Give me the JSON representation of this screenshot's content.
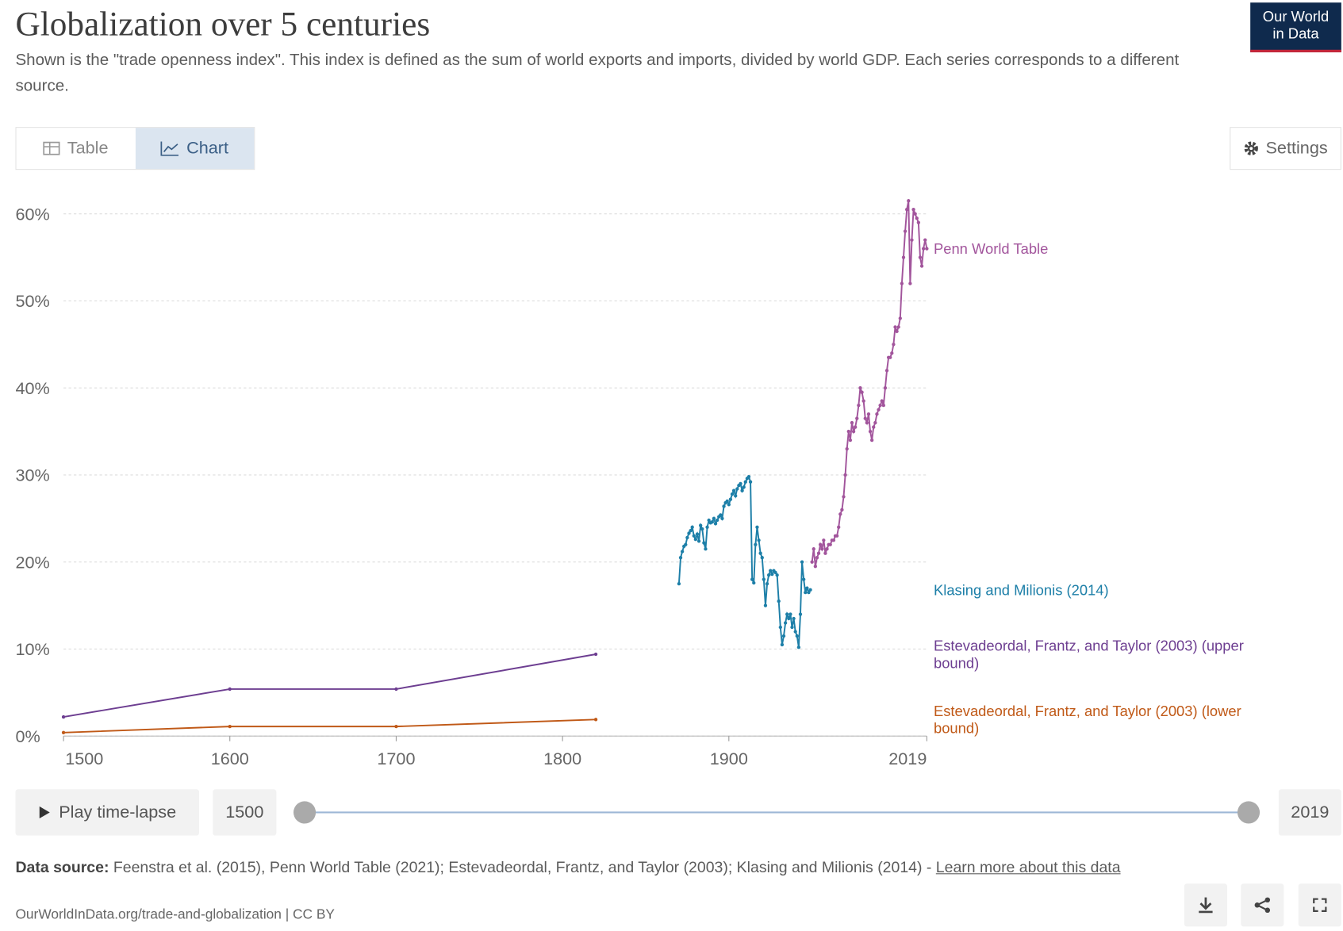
{
  "header": {
    "title": "Globalization over 5 centuries",
    "subtitle": "Shown is the \"trade openness index\". This index is defined as the sum of world exports and imports, divided by world GDP. Each series corresponds to a different source.",
    "logo": [
      "Our World",
      "in Data"
    ]
  },
  "tabs": [
    "Table",
    "Chart"
  ],
  "settings": "Settings",
  "chart_data": {
    "type": "line",
    "xlim": [
      1500,
      2019
    ],
    "xticks": [
      1500,
      1600,
      1700,
      1800,
      1900,
      2019
    ],
    "ylim": [
      0,
      62
    ],
    "yticks": [
      {
        "value": 0,
        "label": "0%"
      },
      {
        "value": 10,
        "label": "10%"
      },
      {
        "value": 20,
        "label": "20%"
      },
      {
        "value": 30,
        "label": "30%"
      },
      {
        "value": 40,
        "label": "40%"
      },
      {
        "value": 50,
        "label": "50%"
      },
      {
        "value": 60,
        "label": "60%"
      }
    ],
    "grid": true,
    "series": [
      {
        "name": "Penn World Table",
        "color": "#a2559c",
        "x": [
          1950,
          1951,
          1952,
          1953,
          1954,
          1955,
          1956,
          1957,
          1958,
          1959,
          1960,
          1961,
          1962,
          1963,
          1964,
          1965,
          1966,
          1967,
          1968,
          1969,
          1970,
          1971,
          1972,
          1973,
          1974,
          1975,
          1976,
          1977,
          1978,
          1979,
          1980,
          1981,
          1982,
          1983,
          1984,
          1985,
          1986,
          1987,
          1988,
          1989,
          1990,
          1991,
          1992,
          1993,
          1994,
          1995,
          1996,
          1997,
          1998,
          1999,
          2000,
          2001,
          2002,
          2003,
          2004,
          2005,
          2006,
          2007,
          2008,
          2009,
          2010,
          2011,
          2012,
          2013,
          2014,
          2015,
          2016,
          2017,
          2018,
          2019
        ],
        "values": [
          20.0,
          21.5,
          19.5,
          20.5,
          21.0,
          22.0,
          21.5,
          22.5,
          21.0,
          21.5,
          22.0,
          22.0,
          22.5,
          22.5,
          23.0,
          23.0,
          24.0,
          25.5,
          26.0,
          27.5,
          30.0,
          33.0,
          35.0,
          34.0,
          36.0,
          35.0,
          35.5,
          36.5,
          38.0,
          40.0,
          39.5,
          38.5,
          36.5,
          36.0,
          37.0,
          35.0,
          34.0,
          35.5,
          36.0,
          37.0,
          37.5,
          38.0,
          38.5,
          38.0,
          40.0,
          42.0,
          43.5,
          43.5,
          44.0,
          45.0,
          47.0,
          46.5,
          47.0,
          48.0,
          52.0,
          55.0,
          58.0,
          60.5,
          61.5,
          52.0,
          57.0,
          60.5,
          60.0,
          59.5,
          59.0,
          55.0,
          54.0,
          56.0,
          57.0,
          56.0
        ]
      },
      {
        "name": "Klasing and Milionis (2014)",
        "color": "#1d7fa8",
        "x": [
          1870,
          1871,
          1872,
          1873,
          1874,
          1875,
          1876,
          1877,
          1878,
          1879,
          1880,
          1881,
          1882,
          1883,
          1884,
          1885,
          1886,
          1887,
          1888,
          1889,
          1890,
          1891,
          1892,
          1893,
          1894,
          1895,
          1896,
          1897,
          1898,
          1899,
          1900,
          1901,
          1902,
          1903,
          1904,
          1905,
          1906,
          1907,
          1908,
          1909,
          1910,
          1911,
          1912,
          1913,
          1914,
          1915,
          1916,
          1917,
          1918,
          1919,
          1920,
          1921,
          1922,
          1923,
          1924,
          1925,
          1926,
          1927,
          1928,
          1929,
          1930,
          1931,
          1932,
          1933,
          1934,
          1935,
          1936,
          1937,
          1938,
          1939,
          1940,
          1941,
          1942,
          1943,
          1944,
          1945,
          1946,
          1947,
          1948,
          1949
        ],
        "values": [
          17.5,
          20.5,
          21.2,
          21.8,
          22.0,
          22.8,
          23.3,
          23.6,
          24.0,
          23.0,
          22.6,
          23.2,
          22.4,
          24.2,
          23.8,
          22.2,
          21.5,
          24.0,
          24.8,
          24.5,
          24.6,
          25.0,
          24.4,
          24.8,
          25.2,
          25.4,
          25.0,
          26.4,
          26.8,
          27.0,
          26.6,
          27.2,
          27.8,
          28.2,
          27.6,
          28.4,
          28.8,
          29.0,
          28.2,
          28.6,
          29.2,
          29.6,
          29.8,
          29.2,
          18.0,
          17.6,
          22.0,
          24.0,
          22.5,
          21.0,
          20.5,
          18.0,
          15.0,
          17.5,
          18.5,
          19.0,
          18.6,
          19.0,
          18.8,
          18.5,
          15.5,
          12.5,
          10.5,
          11.5,
          13.0,
          14.0,
          13.5,
          14.0,
          12.5,
          13.5,
          12.0,
          11.5,
          10.2,
          14.0,
          20.0,
          18.0,
          16.5,
          17.0,
          16.5,
          16.8
        ]
      },
      {
        "name": "Estevadeordal, Frantz, and Taylor (2003) (upper bound)",
        "color": "#6d3e91",
        "x": [
          1500,
          1600,
          1700,
          1820
        ],
        "values": [
          2.2,
          5.4,
          5.4,
          9.4
        ]
      },
      {
        "name": "Estevadeordal, Frantz, and Taylor (2003) (lower bound)",
        "color": "#c05917",
        "x": [
          1500,
          1600,
          1700,
          1820
        ],
        "values": [
          0.4,
          1.1,
          1.1,
          1.9
        ]
      }
    ]
  },
  "timeline": {
    "play": "Play time-lapse",
    "start": 1500,
    "end": 2019
  },
  "footer": {
    "source_label": "Data source:",
    "source": "Feenstra et al. (2015), Penn World Table (2021); Estevadeordal, Frantz, and Taylor (2003); Klasing and Milionis (2014) -",
    "link": "Learn more about this data",
    "url": "OurWorldInData.org/trade-and-globalization | CC BY"
  }
}
